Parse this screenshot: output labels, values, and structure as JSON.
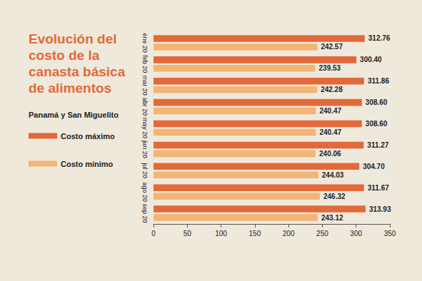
{
  "chart_data": {
    "type": "bar",
    "orientation": "horizontal",
    "title": "Evolución del costo de la canasta básica de alimentos",
    "subtitle": "Panamá y San Miguelito",
    "categories": [
      "ene 20",
      "feb 20",
      "mar 20",
      "abr 20",
      "may 20",
      "jun 20",
      "jul 20",
      "ago 20",
      "sep 20"
    ],
    "series": [
      {
        "name": "Costo máximo",
        "color": "#e2693a",
        "values": [
          312.76,
          300.4,
          311.86,
          308.6,
          308.6,
          311.27,
          304.7,
          311.67,
          313.93
        ],
        "value_labels": [
          "312.76",
          "300.40",
          "311.86",
          "308.60",
          "308.60",
          "311.27",
          "304.70",
          "311.67",
          "313.93"
        ]
      },
      {
        "name": "Costo mínimo",
        "color": "#f2b574",
        "values": [
          242.57,
          239.53,
          242.28,
          240.47,
          240.47,
          240.06,
          244.03,
          246.32,
          243.12
        ],
        "value_labels": [
          "242.57",
          "239.53",
          "242.28",
          "240.47",
          "240.47",
          "240.06",
          "244.03",
          "246.32",
          "243.12"
        ]
      }
    ],
    "xlim": [
      0,
      350
    ],
    "xticks": [
      0,
      50,
      100,
      150,
      200,
      250,
      300,
      350
    ],
    "data_labels": true,
    "grid": false,
    "legend": "left"
  }
}
